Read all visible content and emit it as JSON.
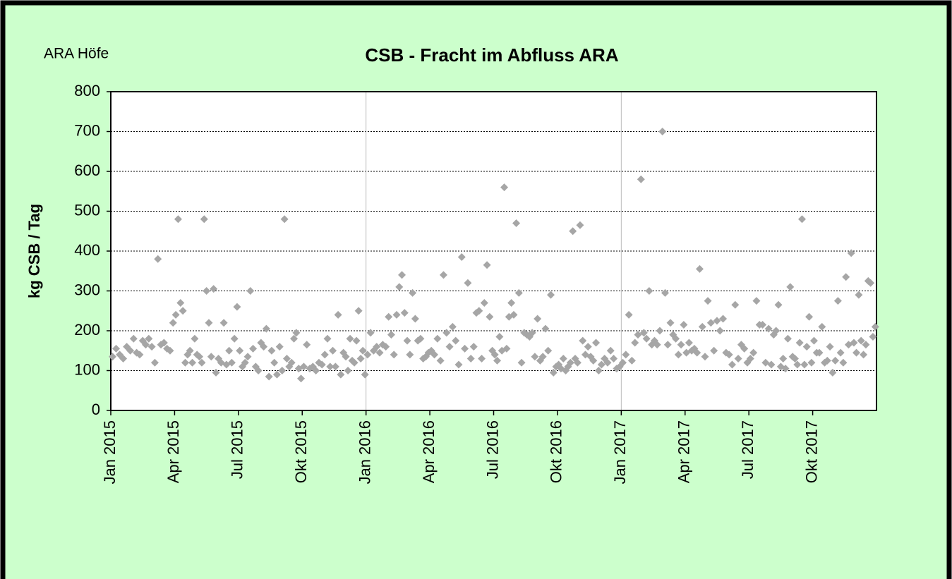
{
  "chart_data": {
    "type": "scatter",
    "title": "CSB - Fracht im Abfluss ARA",
    "annotation": "ARA Höfe",
    "ylabel": "kg CSB / Tag",
    "color": "#a6a6a6",
    "ylim": [
      0,
      800
    ],
    "yticks": [
      0,
      100,
      200,
      300,
      400,
      500,
      600,
      700,
      800
    ],
    "grid": true,
    "xlim": [
      "2015-01",
      "2017-12"
    ],
    "xticks": [
      {
        "value": "2015-01",
        "label": "Jan 2015"
      },
      {
        "value": "2015-04",
        "label": "Apr 2015"
      },
      {
        "value": "2015-07",
        "label": "Jul 2015"
      },
      {
        "value": "2015-10",
        "label": "Okt 2015"
      },
      {
        "value": "2016-01",
        "label": "Jan 2016"
      },
      {
        "value": "2016-04",
        "label": "Apr 2016"
      },
      {
        "value": "2016-07",
        "label": "Jul 2016"
      },
      {
        "value": "2016-10",
        "label": "Okt 2016"
      },
      {
        "value": "2017-01",
        "label": "Jan 2017"
      },
      {
        "value": "2017-04",
        "label": "Apr 2017"
      },
      {
        "value": "2017-07",
        "label": "Jul 2017"
      },
      {
        "value": "2017-10",
        "label": "Okt 2017"
      }
    ],
    "x": [
      "2015-01",
      "2015-01",
      "2015-01",
      "2015-01",
      "2015-01",
      "2015-01",
      "2015-02",
      "2015-02",
      "2015-02",
      "2015-02",
      "2015-02",
      "2015-02",
      "2015-02",
      "2015-03",
      "2015-03",
      "2015-03",
      "2015-03",
      "2015-03",
      "2015-03",
      "2015-03",
      "2015-04",
      "2015-04",
      "2015-04",
      "2015-04",
      "2015-04",
      "2015-04",
      "2015-04",
      "2015-04",
      "2015-04",
      "2015-05",
      "2015-05",
      "2015-05",
      "2015-05",
      "2015-05",
      "2015-05",
      "2015-05",
      "2015-05",
      "2015-05",
      "2015-06",
      "2015-06",
      "2015-06",
      "2015-06",
      "2015-06",
      "2015-06",
      "2015-06",
      "2015-06",
      "2015-07",
      "2015-07",
      "2015-07",
      "2015-07",
      "2015-07",
      "2015-07",
      "2015-07",
      "2015-07",
      "2015-08",
      "2015-08",
      "2015-08",
      "2015-08",
      "2015-08",
      "2015-08",
      "2015-08",
      "2015-08",
      "2015-09",
      "2015-09",
      "2015-09",
      "2015-09",
      "2015-09",
      "2015-09",
      "2015-09",
      "2015-09",
      "2015-09",
      "2015-10",
      "2015-10",
      "2015-10",
      "2015-10",
      "2015-10",
      "2015-10",
      "2015-10",
      "2015-11",
      "2015-11",
      "2015-11",
      "2015-11",
      "2015-11",
      "2015-11",
      "2015-11",
      "2015-11",
      "2015-12",
      "2015-12",
      "2015-12",
      "2015-12",
      "2015-12",
      "2015-12",
      "2015-12",
      "2015-12",
      "2015-12",
      "2015-12",
      "2016-01",
      "2016-01",
      "2016-01",
      "2016-01",
      "2016-01",
      "2016-01",
      "2016-01",
      "2016-02",
      "2016-02",
      "2016-02",
      "2016-02",
      "2016-02",
      "2016-02",
      "2016-02",
      "2016-02",
      "2016-03",
      "2016-03",
      "2016-03",
      "2016-03",
      "2016-03",
      "2016-03",
      "2016-03",
      "2016-03",
      "2016-04",
      "2016-04",
      "2016-04",
      "2016-04",
      "2016-04",
      "2016-04",
      "2016-04",
      "2016-05",
      "2016-05",
      "2016-05",
      "2016-05",
      "2016-05",
      "2016-05",
      "2016-05",
      "2016-06",
      "2016-06",
      "2016-06",
      "2016-06",
      "2016-06",
      "2016-06",
      "2016-06",
      "2016-06",
      "2016-07",
      "2016-07",
      "2016-07",
      "2016-07",
      "2016-07",
      "2016-07",
      "2016-07",
      "2016-07",
      "2016-07",
      "2016-08",
      "2016-08",
      "2016-08",
      "2016-08",
      "2016-08",
      "2016-08",
      "2016-08",
      "2016-08",
      "2016-09",
      "2016-09",
      "2016-09",
      "2016-09",
      "2016-09",
      "2016-09",
      "2016-09",
      "2016-09",
      "2016-10",
      "2016-10",
      "2016-10",
      "2016-10",
      "2016-10",
      "2016-10",
      "2016-10",
      "2016-10",
      "2016-10",
      "2016-11",
      "2016-11",
      "2016-11",
      "2016-11",
      "2016-11",
      "2016-11",
      "2016-11",
      "2016-11",
      "2016-12",
      "2016-12",
      "2016-12",
      "2016-12",
      "2016-12",
      "2016-12",
      "2016-12",
      "2017-01",
      "2017-01",
      "2017-01",
      "2017-01",
      "2017-01",
      "2017-01",
      "2017-01",
      "2017-02",
      "2017-02",
      "2017-02",
      "2017-02",
      "2017-02",
      "2017-02",
      "2017-02",
      "2017-02",
      "2017-03",
      "2017-03",
      "2017-03",
      "2017-03",
      "2017-03",
      "2017-03",
      "2017-03",
      "2017-03",
      "2017-04",
      "2017-04",
      "2017-04",
      "2017-04",
      "2017-04",
      "2017-04",
      "2017-04",
      "2017-04",
      "2017-05",
      "2017-05",
      "2017-05",
      "2017-05",
      "2017-05",
      "2017-05",
      "2017-05",
      "2017-06",
      "2017-06",
      "2017-06",
      "2017-06",
      "2017-06",
      "2017-06",
      "2017-06",
      "2017-07",
      "2017-07",
      "2017-07",
      "2017-07",
      "2017-07",
      "2017-07",
      "2017-07",
      "2017-08",
      "2017-08",
      "2017-08",
      "2017-08",
      "2017-08",
      "2017-08",
      "2017-08",
      "2017-08",
      "2017-08",
      "2017-09",
      "2017-09",
      "2017-09",
      "2017-09",
      "2017-09",
      "2017-09",
      "2017-09",
      "2017-09",
      "2017-09",
      "2017-10",
      "2017-10",
      "2017-10",
      "2017-10",
      "2017-10",
      "2017-10",
      "2017-10",
      "2017-10",
      "2017-11",
      "2017-11",
      "2017-11",
      "2017-11",
      "2017-11",
      "2017-11",
      "2017-11",
      "2017-11",
      "2017-12",
      "2017-12",
      "2017-12",
      "2017-12",
      "2017-12",
      "2017-12",
      "2017-12",
      "2017-12",
      "2017-12"
    ],
    "values": [
      135,
      155,
      140,
      130,
      160,
      150,
      180,
      145,
      140,
      175,
      165,
      180,
      160,
      120,
      380,
      165,
      170,
      155,
      150,
      220,
      240,
      480,
      270,
      250,
      120,
      140,
      150,
      120,
      180,
      140,
      135,
      120,
      480,
      300,
      220,
      135,
      305,
      95,
      130,
      120,
      220,
      115,
      150,
      120,
      180,
      260,
      150,
      110,
      120,
      135,
      300,
      155,
      110,
      100,
      170,
      160,
      205,
      85,
      150,
      120,
      90,
      160,
      100,
      480,
      130,
      110,
      120,
      180,
      195,
      105,
      80,
      110,
      165,
      105,
      110,
      100,
      120,
      115,
      140,
      180,
      110,
      150,
      110,
      240,
      90,
      145,
      135,
      100,
      180,
      125,
      120,
      175,
      250,
      130,
      150,
      90,
      140,
      195,
      150,
      160,
      145,
      165,
      160,
      235,
      190,
      140,
      240,
      310,
      340,
      245,
      175,
      140,
      295,
      230,
      175,
      180,
      130,
      135,
      145,
      150,
      140,
      180,
      125,
      340,
      195,
      160,
      210,
      175,
      115,
      385,
      155,
      320,
      130,
      160,
      245,
      250,
      130,
      270,
      365,
      235,
      150,
      140,
      125,
      185,
      150,
      560,
      155,
      235,
      270,
      240,
      470,
      295,
      120,
      195,
      190,
      185,
      195,
      135,
      230,
      125,
      135,
      205,
      150,
      290,
      95,
      110,
      115,
      105,
      130,
      100,
      110,
      120,
      450,
      130,
      120,
      465,
      175,
      140,
      160,
      135,
      125,
      170,
      100,
      115,
      130,
      120,
      150,
      130,
      105,
      110,
      120,
      140,
      240,
      125,
      170,
      190,
      580,
      195,
      180,
      300,
      165,
      175,
      165,
      200,
      700,
      295,
      165,
      220,
      190,
      180,
      140,
      165,
      215,
      145,
      170,
      150,
      155,
      145,
      355,
      210,
      135,
      275,
      220,
      150,
      225,
      200,
      230,
      145,
      140,
      115,
      265,
      130,
      165,
      155,
      120,
      130,
      145,
      275,
      215,
      215,
      120,
      205,
      115,
      190,
      200,
      265,
      110,
      130,
      105,
      180,
      310,
      135,
      130,
      115,
      170,
      480,
      115,
      160,
      235,
      120,
      175,
      145,
      145,
      210,
      120,
      125,
      160,
      95,
      125,
      275,
      145,
      120,
      335,
      165,
      395,
      170,
      145,
      290,
      175,
      140,
      165,
      325,
      320,
      185,
      210
    ]
  }
}
